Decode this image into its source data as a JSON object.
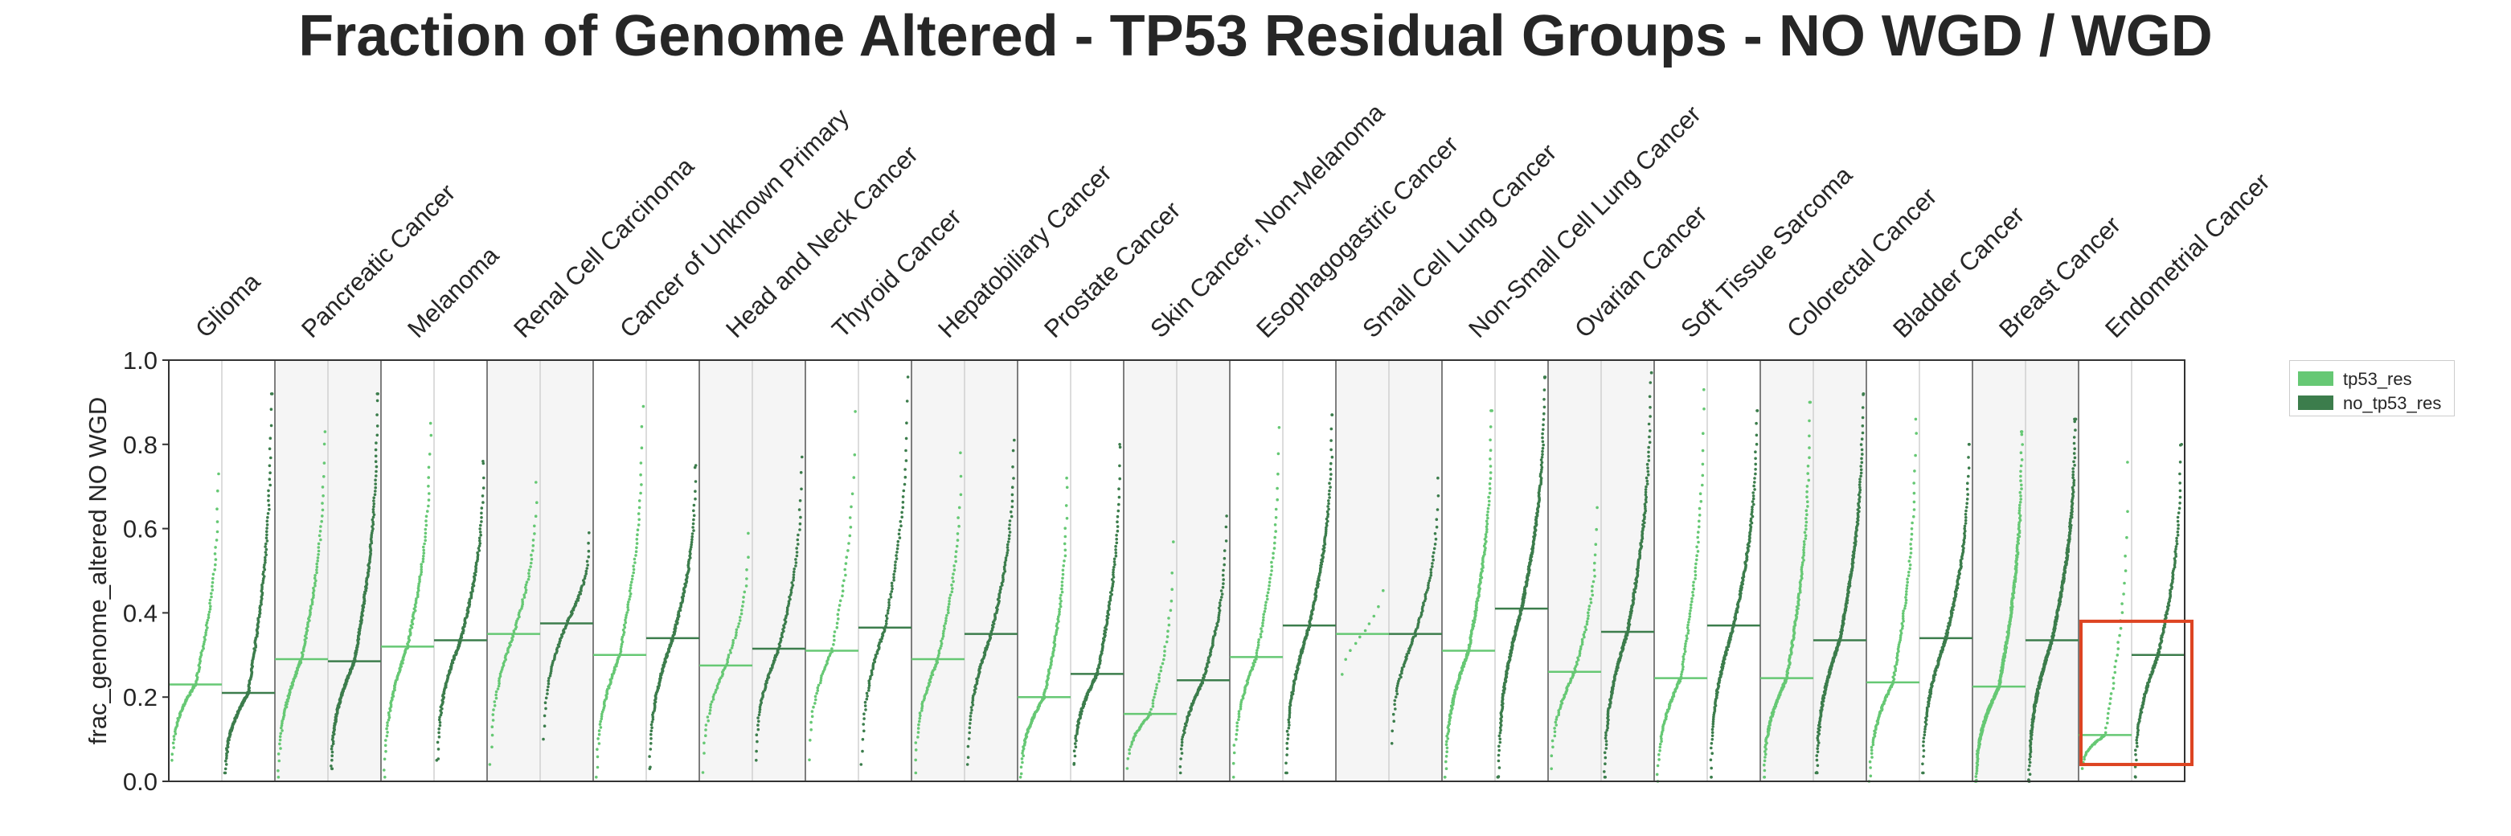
{
  "colors": {
    "tp53_res": "#66c874",
    "no_tp53_res": "#3c7d4c",
    "highlight": "#dd4422"
  },
  "chart_data": {
    "type": "scatter",
    "title": "Fraction of Genome Altered - TP53 Residual Groups - NO WGD / WGD",
    "ylabel": "frac_genome_altered NO WGD",
    "ylim": [
      0,
      1
    ],
    "yticks": [
      "0.0",
      "0.2",
      "0.4",
      "0.6",
      "0.8",
      "1.0"
    ],
    "legend": {
      "position": "right",
      "entries": [
        "tp53_res",
        "no_tp53_res"
      ]
    },
    "highlight": {
      "category": "Endometrial Cancer",
      "ymin": 0.04,
      "ymax": 0.38
    },
    "categories": [
      {
        "name": "Glioma",
        "tp53_res": {
          "median": 0.23,
          "min": 0.05,
          "max": 0.73,
          "n": 110
        },
        "no_tp53_res": {
          "median": 0.21,
          "min": 0.02,
          "max": 0.92,
          "n": 220
        }
      },
      {
        "name": "Pancreatic Cancer",
        "tp53_res": {
          "median": 0.29,
          "min": 0.01,
          "max": 0.83,
          "n": 130
        },
        "no_tp53_res": {
          "median": 0.285,
          "min": 0.03,
          "max": 0.92,
          "n": 260
        }
      },
      {
        "name": "Melanoma",
        "tp53_res": {
          "median": 0.32,
          "min": 0.01,
          "max": 0.85,
          "n": 130
        },
        "no_tp53_res": {
          "median": 0.335,
          "min": 0.05,
          "max": 0.76,
          "n": 170
        }
      },
      {
        "name": "Renal Cell Carcinoma",
        "tp53_res": {
          "median": 0.35,
          "min": 0.04,
          "max": 0.71,
          "n": 80
        },
        "no_tp53_res": {
          "median": 0.375,
          "min": 0.1,
          "max": 0.59,
          "n": 90
        }
      },
      {
        "name": "Cancer of Unknown Primary",
        "tp53_res": {
          "median": 0.3,
          "min": 0.01,
          "max": 0.89,
          "n": 110
        },
        "no_tp53_res": {
          "median": 0.34,
          "min": 0.03,
          "max": 0.75,
          "n": 170
        }
      },
      {
        "name": "Head and Neck Cancer",
        "tp53_res": {
          "median": 0.275,
          "min": 0.02,
          "max": 0.59,
          "n": 60
        },
        "no_tp53_res": {
          "median": 0.315,
          "min": 0.05,
          "max": 0.77,
          "n": 110
        }
      },
      {
        "name": "Thyroid Cancer",
        "tp53_res": {
          "median": 0.31,
          "min": 0.05,
          "max": 0.88,
          "n": 60
        },
        "no_tp53_res": {
          "median": 0.365,
          "min": 0.04,
          "max": 0.96,
          "n": 100
        }
      },
      {
        "name": "Hepatobiliary Cancer",
        "tp53_res": {
          "median": 0.29,
          "min": 0.02,
          "max": 0.78,
          "n": 90
        },
        "no_tp53_res": {
          "median": 0.35,
          "min": 0.04,
          "max": 0.81,
          "n": 130
        }
      },
      {
        "name": "Prostate Cancer",
        "tp53_res": {
          "median": 0.2,
          "min": 0.01,
          "max": 0.72,
          "n": 140
        },
        "no_tp53_res": {
          "median": 0.255,
          "min": 0.04,
          "max": 0.8,
          "n": 170
        }
      },
      {
        "name": "Skin Cancer, Non-Melanoma",
        "tp53_res": {
          "median": 0.16,
          "min": 0.03,
          "max": 0.57,
          "n": 60
        },
        "no_tp53_res": {
          "median": 0.24,
          "min": 0.02,
          "max": 0.63,
          "n": 120
        }
      },
      {
        "name": "Esophagogastric Cancer",
        "tp53_res": {
          "median": 0.295,
          "min": 0.01,
          "max": 0.84,
          "n": 90
        },
        "no_tp53_res": {
          "median": 0.37,
          "min": 0.02,
          "max": 0.87,
          "n": 200
        }
      },
      {
        "name": "Small Cell Lung Cancer",
        "tp53_res": {
          "median": 0.35,
          "min": 0.21,
          "max": 0.5,
          "n": 10
        },
        "no_tp53_res": {
          "median": 0.35,
          "min": 0.09,
          "max": 0.72,
          "n": 90
        }
      },
      {
        "name": "Non-Small Cell Lung Cancer",
        "tp53_res": {
          "median": 0.31,
          "min": 0.01,
          "max": 0.88,
          "n": 200
        },
        "no_tp53_res": {
          "median": 0.41,
          "min": 0.01,
          "max": 0.96,
          "n": 300
        }
      },
      {
        "name": "Ovarian Cancer",
        "tp53_res": {
          "median": 0.26,
          "min": 0.03,
          "max": 0.65,
          "n": 80
        },
        "no_tp53_res": {
          "median": 0.355,
          "min": 0.01,
          "max": 0.97,
          "n": 240
        }
      },
      {
        "name": "Soft Tissue Sarcoma",
        "tp53_res": {
          "median": 0.245,
          "min": 0.0,
          "max": 0.93,
          "n": 120
        },
        "no_tp53_res": {
          "median": 0.37,
          "min": 0.01,
          "max": 0.88,
          "n": 210
        }
      },
      {
        "name": "Colorectal Cancer",
        "tp53_res": {
          "median": 0.245,
          "min": 0.01,
          "max": 0.9,
          "n": 200
        },
        "no_tp53_res": {
          "median": 0.335,
          "min": 0.02,
          "max": 0.92,
          "n": 300
        }
      },
      {
        "name": "Bladder Cancer",
        "tp53_res": {
          "median": 0.235,
          "min": 0.0,
          "max": 0.86,
          "n": 130
        },
        "no_tp53_res": {
          "median": 0.34,
          "min": 0.02,
          "max": 0.8,
          "n": 200
        }
      },
      {
        "name": "Breast Cancer",
        "tp53_res": {
          "median": 0.225,
          "min": 0.0,
          "max": 0.83,
          "n": 400
        },
        "no_tp53_res": {
          "median": 0.335,
          "min": 0.0,
          "max": 0.86,
          "n": 400
        }
      },
      {
        "name": "Endometrial Cancer",
        "tp53_res": {
          "median": 0.11,
          "min": 0.03,
          "max": 0.76,
          "n": 60
        },
        "no_tp53_res": {
          "median": 0.3,
          "min": 0.01,
          "max": 0.8,
          "n": 180
        }
      }
    ]
  }
}
